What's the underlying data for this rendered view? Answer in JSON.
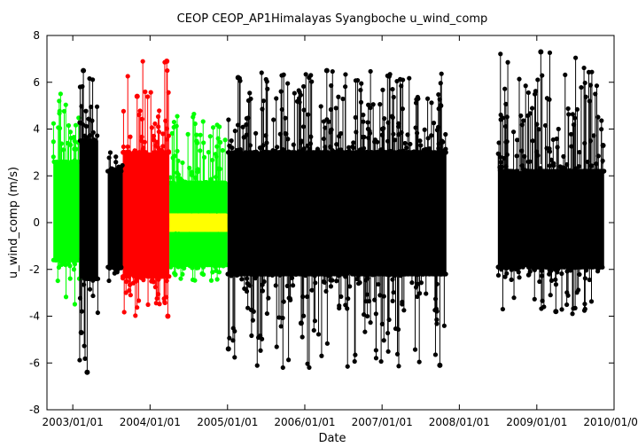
{
  "chart_data": {
    "type": "scatter",
    "title": "CEOP CEOP_AP1Himalayas Syangboche  u_wind_comp",
    "xlabel": "Date",
    "ylabel": "u_wind_comp (m/s)",
    "xlim": [
      "2002-09-01",
      "2010-01-01"
    ],
    "ylim": [
      -8,
      8
    ],
    "x_ticks": [
      "2003/01/01",
      "2004/01/01",
      "2005/01/01",
      "2006/01/01",
      "2007/01/01",
      "2008/01/01",
      "2009/01/01",
      "2010/01/01"
    ],
    "y_ticks": [
      -8,
      -6,
      -4,
      -2,
      0,
      2,
      4,
      6,
      8
    ],
    "grid": false,
    "series": [
      {
        "color": "#00ff00",
        "segments": [
          {
            "start": "2002-10-01",
            "end": "2003-02-01",
            "low": -3.5,
            "high": 6.1,
            "core_low": -1.6,
            "core_high": 2.6
          },
          {
            "start": "2004-04-01",
            "end": "2005-01-01",
            "low": -2.5,
            "high": 4.7,
            "core_low": -1.8,
            "core_high": 1.7
          }
        ]
      },
      {
        "color": "#ffff00",
        "segments": [
          {
            "start": "2004-04-01",
            "end": "2005-01-01",
            "low": -0.3,
            "high": 0.3,
            "core_low": -0.3,
            "core_high": 0.3
          }
        ]
      },
      {
        "color": "#ff0000",
        "segments": [
          {
            "start": "2003-08-25",
            "end": "2004-04-01",
            "low": -4.1,
            "high": 6.9,
            "core_low": -2.3,
            "core_high": 3.0
          }
        ]
      },
      {
        "color": "#000000",
        "segments": [
          {
            "start": "2003-02-01",
            "end": "2003-05-01",
            "low": -6.4,
            "high": 6.5,
            "core_low": -2.4,
            "core_high": 3.5
          },
          {
            "start": "2003-06-15",
            "end": "2003-08-25",
            "low": -2.5,
            "high": 3.0,
            "core_low": -1.9,
            "core_high": 2.2
          },
          {
            "start": "2005-01-01",
            "end": "2007-11-01",
            "low": -6.2,
            "high": 6.5,
            "core_low": -2.2,
            "core_high": 3.0
          },
          {
            "start": "2008-07-01",
            "end": "2009-11-15",
            "low": -3.9,
            "high": 7.3,
            "core_low": -1.9,
            "core_high": 2.2
          }
        ]
      }
    ],
    "peaks": [
      {
        "date": "2003-02-20",
        "value": 6.5
      },
      {
        "date": "2003-03-10",
        "value": -6.4
      },
      {
        "date": "2003-02-10",
        "value": -4.7
      },
      {
        "date": "2003-11-01",
        "value": 5.4
      },
      {
        "date": "2004-03-20",
        "value": 6.9
      },
      {
        "date": "2004-03-25",
        "value": -4.0
      },
      {
        "date": "2005-01-05",
        "value": -5.4
      },
      {
        "date": "2005-02-20",
        "value": 6.2
      },
      {
        "date": "2005-12-15",
        "value": -4.3
      },
      {
        "date": "2006-04-15",
        "value": 6.5
      },
      {
        "date": "2007-10-01",
        "value": -6.1
      },
      {
        "date": "2007-10-05",
        "value": 5.0
      },
      {
        "date": "2009-01-20",
        "value": 7.3
      },
      {
        "date": "2009-04-01",
        "value": -3.8
      },
      {
        "date": "2009-11-10",
        "value": 3.3
      }
    ]
  }
}
